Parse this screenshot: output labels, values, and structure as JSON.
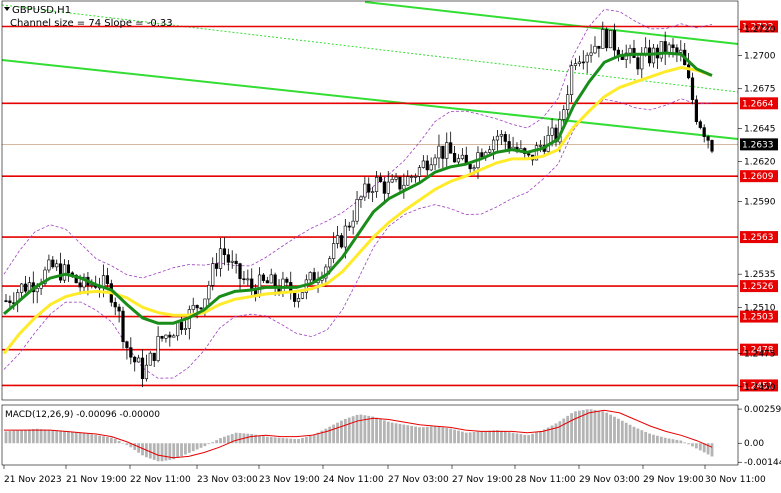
{
  "window": {
    "symbol_title": "GBPUSD,H1",
    "indicator_info": "Channel size = 74 Slope = -0.33",
    "menu_icon": "triangle-down-icon"
  },
  "colors": {
    "background": "#ffffff",
    "bull_candle": "#000000",
    "bear_candle": "#000000",
    "level_line": "#e60000",
    "current_price_badge": "#000000",
    "level_badge": "#e60000",
    "channel_line": "#33dd33",
    "channel_dotted": "#33dd33",
    "ma_fast": "#1a8c1a",
    "ma_slow": "#ffeb2a",
    "bollinger": "#a040c0",
    "macd_hist": "#b4b4b4",
    "macd_signal": "#e60000",
    "grid": "#c8c8c8",
    "axis_text": "#000000"
  },
  "price_axis": {
    "ticks": [
      "1.2720",
      "1.2700",
      "1.2675",
      "1.2645",
      "1.2620",
      "1.2590",
      "1.2535",
      "1.2510",
      "1.2475",
      "1.2450"
    ],
    "tick_values": [
      1.272,
      1.27,
      1.2675,
      1.2645,
      1.262,
      1.259,
      1.2535,
      1.251,
      1.2475,
      1.245
    ],
    "min": 1.244,
    "max": 1.2742
  },
  "levels": [
    {
      "label": "1.2722",
      "value": 1.2722
    },
    {
      "label": "1.2664",
      "value": 1.2664
    },
    {
      "label": "1.2609",
      "value": 1.2609
    },
    {
      "label": "1.2563",
      "value": 1.2563
    },
    {
      "label": "1.2526",
      "value": 1.2526
    },
    {
      "label": "1.2503",
      "value": 1.2503
    },
    {
      "label": "1.2478",
      "value": 1.2478
    },
    {
      "label": "1.2451",
      "value": 1.2451
    }
  ],
  "current_price": {
    "label": "1.2633",
    "value": 1.2633
  },
  "time_axis": {
    "labels": [
      "21 Nov 2023",
      "21 Nov 19:00",
      "22 Nov 11:00",
      "23 Nov 03:00",
      "23 Nov 19:00",
      "24 Nov 11:00",
      "27 Nov 03:00",
      "27 Nov 19:00",
      "28 Nov 11:00",
      "29 Nov 03:00",
      "29 Nov 19:00",
      "30 Nov 11:00"
    ]
  },
  "macd": {
    "title": "MACD(12,26,9) -0.00096 -0.00000",
    "ticks": [
      "0.00259",
      "0.00",
      "-0.00144"
    ],
    "tick_values": [
      0.00259,
      0.0,
      -0.00144
    ],
    "min": -0.00165,
    "max": 0.0029
  },
  "chart_data": {
    "type": "candlestick",
    "title": "GBPUSD,H1",
    "ylim": [
      1.244,
      1.2742
    ],
    "close_path": [
      1.2515,
      1.2525,
      1.253,
      1.254,
      1.2535,
      1.2525,
      1.253,
      1.252,
      1.2475,
      1.246,
      1.2485,
      1.2495,
      1.2505,
      1.252,
      1.2555,
      1.2535,
      1.2525,
      1.2528,
      1.2525,
      1.252,
      1.2532,
      1.2545,
      1.2565,
      1.259,
      1.2605,
      1.26,
      1.2605,
      1.2615,
      1.263,
      1.2625,
      1.2615,
      1.263,
      1.264,
      1.2632,
      1.262,
      1.2635,
      1.264,
      1.27,
      1.2705,
      1.2715,
      1.2705,
      1.2695,
      1.27,
      1.2705,
      1.27,
      1.2655,
      1.2633
    ],
    "macd_hist": [
      0.0009,
      0.001,
      0.0011,
      0.001,
      0.0009,
      0.0008,
      0.0006,
      0.0004,
      -0.0002,
      -0.001,
      -0.0014,
      -0.0012,
      -0.0007,
      -0.0002,
      0.0004,
      0.0008,
      0.0007,
      0.0005,
      0.0004,
      0.0003,
      0.0006,
      0.0012,
      0.0018,
      0.0022,
      0.002,
      0.0016,
      0.0014,
      0.0012,
      0.0013,
      0.0011,
      0.0008,
      0.0009,
      0.001,
      0.0008,
      0.0006,
      0.001,
      0.0016,
      0.0024,
      0.0026,
      0.0024,
      0.0018,
      0.0012,
      0.0007,
      0.0004,
      0.0002,
      -0.0004,
      -0.001
    ],
    "macd_signal": [
      0.001,
      0.001,
      0.001,
      0.001,
      0.0009,
      0.0008,
      0.0007,
      0.0005,
      0.0001,
      -0.0004,
      -0.0009,
      -0.0011,
      -0.001,
      -0.0007,
      -0.0003,
      0.0002,
      0.0005,
      0.0006,
      0.0005,
      0.0005,
      0.0006,
      0.0009,
      0.0013,
      0.0017,
      0.0019,
      0.0018,
      0.0016,
      0.0014,
      0.0013,
      0.0012,
      0.001,
      0.0009,
      0.0009,
      0.0009,
      0.0008,
      0.0009,
      0.0012,
      0.0018,
      0.0023,
      0.0025,
      0.0023,
      0.0018,
      0.0013,
      0.0009,
      0.0006,
      0.0002,
      -0.0003
    ],
    "ma_fast": [
      1.2505,
      1.2515,
      1.2525,
      1.2532,
      1.2535,
      1.2532,
      1.2527,
      1.2523,
      1.2512,
      1.2502,
      1.2498,
      1.2498,
      1.2502,
      1.2508,
      1.2518,
      1.2522,
      1.2523,
      1.2525,
      1.2525,
      1.2525,
      1.2528,
      1.2535,
      1.2548,
      1.2565,
      1.2582,
      1.2592,
      1.2598,
      1.2604,
      1.2612,
      1.2616,
      1.2618,
      1.2622,
      1.2627,
      1.2629,
      1.2627,
      1.263,
      1.2637,
      1.2662,
      1.268,
      1.2695,
      1.27,
      1.2701,
      1.2701,
      1.2702,
      1.2701,
      1.269,
      1.2685
    ],
    "ma_slow": [
      1.2475,
      1.249,
      1.2502,
      1.2512,
      1.2518,
      1.2521,
      1.2522,
      1.2521,
      1.2517,
      1.251,
      1.2506,
      1.2504,
      1.2504,
      1.2506,
      1.2512,
      1.2516,
      1.2518,
      1.252,
      1.2521,
      1.2522,
      1.2524,
      1.2528,
      1.2537,
      1.255,
      1.2563,
      1.2574,
      1.2583,
      1.2591,
      1.2599,
      1.2605,
      1.2609,
      1.2614,
      1.2619,
      1.2622,
      1.2622,
      1.2624,
      1.2629,
      1.2646,
      1.2658,
      1.2669,
      1.2676,
      1.268,
      1.2684,
      1.2688,
      1.2691,
      1.2689,
      1.2685
    ]
  }
}
